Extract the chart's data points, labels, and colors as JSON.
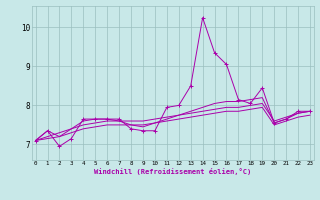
{
  "xlabel": "Windchill (Refroidissement éolien,°C)",
  "bg_color": "#c8e8e8",
  "grid_color": "#9bbfbf",
  "line_color": "#aa00aa",
  "x_ticks": [
    0,
    1,
    2,
    3,
    4,
    5,
    6,
    7,
    8,
    9,
    10,
    11,
    12,
    13,
    14,
    15,
    16,
    17,
    18,
    19,
    20,
    21,
    22,
    23
  ],
  "y_ticks": [
    7,
    8,
    9,
    10
  ],
  "ylim": [
    6.6,
    10.55
  ],
  "xlim": [
    -0.3,
    23.3
  ],
  "series": [
    [
      7.1,
      7.35,
      6.95,
      7.15,
      7.65,
      7.65,
      7.65,
      7.65,
      7.4,
      7.35,
      7.35,
      7.95,
      8.0,
      8.5,
      10.25,
      9.35,
      9.05,
      8.15,
      8.05,
      8.45,
      7.55,
      7.65,
      7.85,
      7.85
    ],
    [
      7.1,
      7.35,
      7.2,
      7.4,
      7.6,
      7.65,
      7.65,
      7.6,
      7.5,
      7.45,
      7.55,
      7.65,
      7.75,
      7.85,
      7.95,
      8.05,
      8.1,
      8.1,
      8.15,
      8.2,
      7.55,
      7.65,
      7.8,
      7.85
    ],
    [
      7.1,
      7.2,
      7.3,
      7.4,
      7.5,
      7.55,
      7.6,
      7.6,
      7.6,
      7.6,
      7.65,
      7.7,
      7.75,
      7.8,
      7.85,
      7.9,
      7.95,
      7.95,
      8.0,
      8.05,
      7.6,
      7.7,
      7.8,
      7.85
    ],
    [
      7.1,
      7.15,
      7.2,
      7.3,
      7.4,
      7.45,
      7.5,
      7.5,
      7.5,
      7.5,
      7.55,
      7.6,
      7.65,
      7.7,
      7.75,
      7.8,
      7.85,
      7.85,
      7.9,
      7.95,
      7.5,
      7.6,
      7.7,
      7.75
    ]
  ]
}
